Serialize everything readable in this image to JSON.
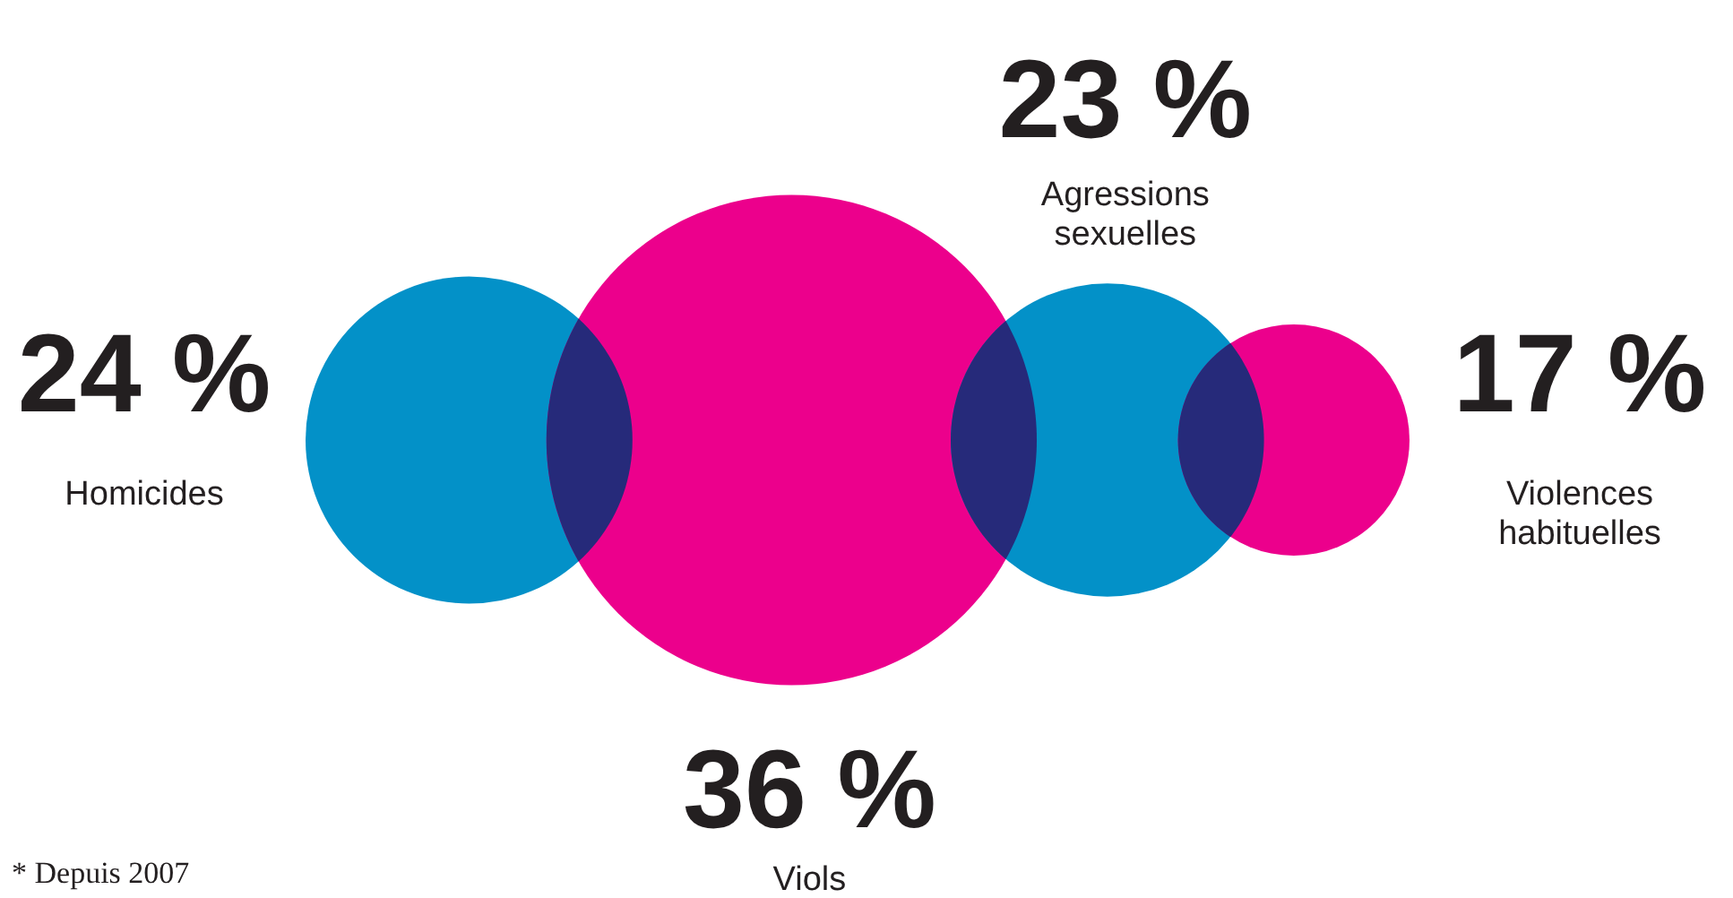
{
  "chart_data": {
    "type": "other",
    "categories": [
      "Homicides",
      "Viols",
      "Agressions sexuelles",
      "Violences habituelles"
    ],
    "values": [
      24,
      36,
      23,
      17
    ],
    "value_labels": [
      "24 %",
      "36 %",
      "23 %",
      "17 %"
    ],
    "colors": [
      "#0391c8",
      "#ec008c",
      "#0391c8",
      "#ec008c"
    ],
    "annotations": [
      "* Depuis 2007"
    ]
  }
}
